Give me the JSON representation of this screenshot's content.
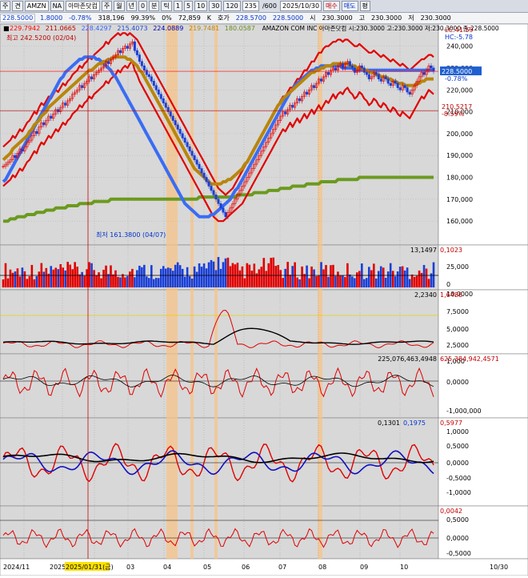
{
  "toolbar": {
    "items": [
      "주",
      "견",
      "AMZN",
      "NA",
      "아마존닷컴",
      "주",
      "월",
      "년",
      "0",
      "분",
      "틱",
      "1",
      "5",
      "10",
      "30",
      "120"
    ],
    "count": "235",
    "total": "/600",
    "date": "2025/10/30",
    "buy": "매수",
    "sell": "매도",
    "pyeong": "평"
  },
  "quote": {
    "price": "228.5000",
    "change": "1.8000",
    "change_pct": "-0.78%",
    "volume": "318,196",
    "ratio": "99.39%",
    "zero": "0%",
    "volume2": "72,859",
    "k_label": "K",
    "hoga_label": "호가",
    "hoga1": "228.5700",
    "hoga2": "228.5000",
    "si_label": "시",
    "open": "230.3000",
    "go_label": "고",
    "high": "230.3000",
    "jeo_label": "저",
    "low": "230.3000"
  },
  "chart_data": {
    "type": "line",
    "title": "AMAZON COM INC  아마존닷컴",
    "price_panel": {
      "ylim": [
        152,
        245
      ],
      "ticks": [
        "240,000",
        "230,000",
        "220,000",
        "210,000",
        "200,000",
        "190,000",
        "180,000",
        "170,000",
        "160,000"
      ],
      "legend": [
        "229.7942",
        "211.0665",
        "228.4297",
        "215.4073",
        "224.0889",
        "219.7481",
        "180.0587"
      ],
      "legend_colors": [
        "#ff0000",
        "#c00000",
        "#3366ff",
        "#1d4ed8",
        "#0000aa",
        "#b8860b",
        "#6b8e23"
      ],
      "ohlc_label": "AMAZON COM INC  아마존닷컴  시:230.3000 고:230.3000 저:230.3000 종:228.5000",
      "current_label": "228.5000",
      "ma_hi_label": "LC:41.59",
      "ma_lo_label": "HC:-5.78",
      "pct_label": "-0.78%",
      "low_label": "210.5217",
      "low_pct_label": "-8.59%",
      "max_label": "최고 242.5200 (02/04)",
      "min_label": "최저 161.3800 (04/07)",
      "close": [
        185,
        186,
        187,
        188,
        190,
        189,
        191,
        193,
        192,
        194,
        196,
        197,
        199,
        201,
        200,
        203,
        205,
        204,
        206,
        208,
        207,
        209,
        211,
        210,
        212,
        214,
        213,
        215,
        216,
        218,
        219,
        220,
        222,
        221,
        223,
        224,
        226,
        225,
        227,
        228,
        229,
        230,
        231,
        233,
        232,
        234,
        235,
        236,
        238,
        237,
        239,
        240,
        239,
        241,
        242,
        238,
        236,
        233,
        231,
        229,
        227,
        226,
        224,
        222,
        220,
        218,
        216,
        214,
        212,
        210,
        208,
        206,
        204,
        202,
        200,
        198,
        196,
        194,
        192,
        190,
        188,
        186,
        184,
        182,
        180,
        178,
        176,
        174,
        172,
        170,
        168,
        166,
        164,
        162,
        164,
        166,
        168,
        170,
        172,
        174,
        176,
        178,
        180,
        182,
        184,
        186,
        188,
        190,
        192,
        194,
        196,
        198,
        200,
        202,
        204,
        206,
        208,
        210,
        209,
        211,
        213,
        212,
        214,
        216,
        215,
        217,
        219,
        218,
        220,
        222,
        221,
        223,
        225,
        224,
        226,
        228,
        227,
        229,
        230,
        229,
        231,
        232,
        230,
        232,
        233,
        231,
        230,
        228,
        229,
        231,
        230,
        228,
        227,
        225,
        226,
        228,
        227,
        225,
        224,
        226,
        225,
        223,
        222,
        224,
        223,
        221,
        220,
        222,
        221,
        219,
        218,
        220,
        222,
        224,
        226,
        228,
        227,
        229,
        231,
        230,
        228.5
      ],
      "bb_upper": [
        194,
        195,
        196,
        197,
        199,
        198,
        200,
        202,
        201,
        203,
        205,
        206,
        208,
        210,
        209,
        212,
        214,
        213,
        215,
        217,
        216,
        218,
        220,
        219,
        221,
        223,
        222,
        224,
        225,
        227,
        228,
        229,
        231,
        230,
        232,
        233,
        235,
        234,
        236,
        237,
        238,
        239,
        240,
        242,
        241,
        243,
        244,
        245,
        246,
        245,
        246,
        246,
        245,
        246,
        245,
        244,
        243,
        241,
        239,
        237,
        235,
        233,
        231,
        229,
        227,
        225,
        223,
        221,
        219,
        217,
        215,
        213,
        211,
        209,
        207,
        205,
        203,
        201,
        199,
        197,
        195,
        193,
        191,
        189,
        187,
        185,
        183,
        181,
        179,
        177,
        175,
        174,
        173,
        172,
        173,
        174,
        175,
        177,
        179,
        181,
        183,
        185,
        187,
        189,
        191,
        193,
        195,
        197,
        199,
        201,
        203,
        205,
        207,
        209,
        211,
        213,
        215,
        217,
        217,
        219,
        221,
        221,
        223,
        225,
        225,
        227,
        229,
        229,
        231,
        233,
        233,
        235,
        237,
        237,
        239,
        240,
        240,
        241,
        242,
        242,
        243,
        243,
        242,
        243,
        243,
        242,
        241,
        240,
        240,
        241,
        240,
        239,
        238,
        237,
        237,
        238,
        237,
        236,
        235,
        236,
        235,
        234,
        233,
        234,
        233,
        232,
        231,
        232,
        231,
        230,
        229,
        230,
        231,
        232,
        233,
        234,
        234,
        235,
        236,
        236,
        235
      ],
      "bb_lower": [
        176,
        177,
        178,
        179,
        181,
        180,
        182,
        184,
        183,
        185,
        187,
        188,
        190,
        192,
        191,
        194,
        196,
        195,
        197,
        199,
        198,
        200,
        202,
        201,
        203,
        205,
        204,
        206,
        207,
        209,
        210,
        211,
        213,
        212,
        214,
        215,
        217,
        216,
        218,
        219,
        220,
        221,
        222,
        224,
        223,
        225,
        226,
        227,
        229,
        228,
        230,
        231,
        230,
        232,
        233,
        229,
        227,
        224,
        222,
        220,
        218,
        216,
        214,
        212,
        210,
        208,
        206,
        204,
        202,
        200,
        198,
        196,
        194,
        192,
        190,
        188,
        186,
        184,
        182,
        180,
        178,
        176,
        174,
        172,
        170,
        168,
        166,
        164,
        162,
        161,
        160,
        160,
        160,
        161,
        162,
        163,
        164,
        165,
        166,
        167,
        168,
        170,
        172,
        174,
        176,
        178,
        180,
        182,
        184,
        186,
        188,
        190,
        192,
        194,
        196,
        198,
        200,
        202,
        201,
        203,
        205,
        203,
        205,
        207,
        205,
        207,
        209,
        207,
        209,
        211,
        209,
        211,
        213,
        211,
        213,
        215,
        214,
        216,
        218,
        216,
        218,
        219,
        218,
        220,
        221,
        219,
        218,
        216,
        217,
        219,
        218,
        216,
        215,
        213,
        214,
        216,
        215,
        213,
        212,
        214,
        213,
        211,
        210,
        212,
        211,
        209,
        208,
        210,
        209,
        208,
        207,
        209,
        211,
        213,
        215,
        217,
        216,
        218,
        220,
        219,
        218
      ],
      "ma_mid": [
        188,
        189,
        190,
        191,
        193,
        194,
        195,
        196,
        197,
        198,
        199,
        201,
        202,
        204,
        205,
        206,
        208,
        209,
        210,
        212,
        213,
        214,
        215,
        216,
        217,
        218,
        219,
        220,
        221,
        222,
        223,
        224,
        225,
        226,
        227,
        228,
        229,
        229,
        230,
        231,
        232,
        232,
        233,
        233,
        234,
        234,
        235,
        235,
        235,
        235,
        235,
        235,
        234,
        234,
        233,
        232,
        231,
        229,
        228,
        226,
        224,
        222,
        220,
        218,
        216,
        214,
        212,
        210,
        208,
        206,
        204,
        202,
        200,
        198,
        196,
        194,
        192,
        190,
        188,
        186,
        184,
        183,
        182,
        181,
        180,
        179,
        178,
        177,
        177,
        177,
        177,
        177,
        178,
        178,
        179,
        179,
        180,
        181,
        182,
        183,
        184,
        186,
        187,
        189,
        191,
        193,
        195,
        197,
        199,
        201,
        203,
        205,
        207,
        209,
        211,
        213,
        214,
        216,
        217,
        218,
        219,
        220,
        221,
        222,
        223,
        224,
        225,
        226,
        227,
        228,
        228,
        229,
        229,
        230,
        230,
        231,
        231,
        231,
        232,
        232,
        232,
        232,
        232,
        232,
        232,
        231,
        231,
        231,
        230,
        230,
        230,
        229,
        229,
        228,
        228,
        228,
        227,
        227,
        226,
        226,
        226,
        225,
        225,
        224,
        224,
        223,
        223,
        223,
        222,
        222,
        222,
        222,
        222,
        223,
        223,
        224,
        224,
        225,
        225,
        225,
        225
      ],
      "ma_long": [
        178,
        179,
        181,
        183,
        185,
        187,
        189,
        191,
        193,
        195,
        197,
        199,
        201,
        203,
        205,
        207,
        209,
        211,
        213,
        215,
        217,
        219,
        221,
        223,
        225,
        226,
        228,
        229,
        230,
        231,
        232,
        233,
        234,
        234,
        235,
        235,
        235,
        235,
        235,
        234,
        234,
        233,
        232,
        231,
        230,
        229,
        227,
        226,
        224,
        222,
        220,
        218,
        216,
        214,
        212,
        210,
        208,
        206,
        204,
        202,
        200,
        198,
        196,
        194,
        192,
        190,
        188,
        186,
        184,
        182,
        180,
        178,
        176,
        174,
        172,
        170,
        168,
        167,
        166,
        165,
        164,
        163,
        162,
        162,
        162,
        162,
        162,
        163,
        163,
        164,
        165,
        166,
        167,
        168,
        169,
        170,
        172,
        174,
        175,
        177,
        179,
        181,
        183,
        185,
        187,
        189,
        191,
        193,
        195,
        197,
        199,
        201,
        203,
        205,
        207,
        209,
        211,
        213,
        215,
        217,
        219,
        220,
        222,
        223,
        224,
        225,
        226,
        227,
        228,
        229,
        229,
        230,
        230,
        231,
        231,
        231,
        231,
        231,
        231,
        231,
        231,
        231,
        230,
        230,
        230,
        230,
        230,
        229,
        229,
        229,
        229,
        229,
        229,
        229,
        229,
        229,
        229,
        229,
        229,
        229,
        229,
        229,
        229,
        229,
        229,
        229,
        229,
        229,
        229,
        229,
        229,
        229,
        229,
        229,
        229,
        229,
        229,
        229,
        229,
        229,
        229
      ],
      "ma_200": [
        160,
        160,
        160,
        161,
        161,
        161,
        162,
        162,
        162,
        162,
        163,
        163,
        163,
        163,
        164,
        164,
        164,
        164,
        165,
        165,
        165,
        165,
        166,
        166,
        166,
        166,
        166,
        167,
        167,
        167,
        167,
        167,
        168,
        168,
        168,
        168,
        168,
        168,
        169,
        169,
        169,
        169,
        169,
        169,
        169,
        170,
        170,
        170,
        170,
        170,
        170,
        170,
        170,
        170,
        170,
        170,
        170,
        170,
        170,
        170,
        170,
        170,
        170,
        170,
        170,
        170,
        170,
        170,
        170,
        170,
        170,
        170,
        170,
        170,
        170,
        170,
        170,
        170,
        170,
        170,
        170,
        170,
        171,
        171,
        171,
        171,
        171,
        171,
        171,
        171,
        171,
        171,
        171,
        171,
        171,
        171,
        171,
        171,
        172,
        172,
        172,
        172,
        172,
        172,
        172,
        173,
        173,
        173,
        173,
        173,
        173,
        174,
        174,
        174,
        174,
        174,
        175,
        175,
        175,
        175,
        175,
        176,
        176,
        176,
        176,
        176,
        176,
        177,
        177,
        177,
        177,
        177,
        177,
        178,
        178,
        178,
        178,
        178,
        178,
        178,
        179,
        179,
        179,
        179,
        179,
        179,
        179,
        179,
        179,
        180,
        180,
        180,
        180,
        180,
        180,
        180,
        180,
        180,
        180,
        180,
        180,
        180,
        180,
        180,
        180,
        180,
        180,
        180,
        180,
        180,
        180,
        180,
        180,
        180,
        180,
        180,
        180,
        180,
        180,
        180,
        180
      ]
    },
    "volume_panel": {
      "ticks": [
        "25,000",
        "0"
      ],
      "legend": [
        "13,1497",
        "0,1023"
      ]
    },
    "osc1_panel": {
      "ticks": [
        "10,0000",
        "7,5000",
        "5,0000",
        "2,5000"
      ],
      "legend": [
        "2,2340",
        "1,6486"
      ]
    },
    "osc2_panel": {
      "ticks": [
        "1,000",
        "0,0000",
        "-1,000,000"
      ],
      "legend": [
        "225,076,463,4948",
        "625,384,942,4571"
      ]
    },
    "osc3_panel": {
      "ticks": [
        "1,0000",
        "0,5000",
        "0,0000",
        "-0,5000",
        "-1,0000"
      ],
      "legend": [
        "0,1301",
        "0,1975",
        "0,5977"
      ]
    },
    "osc4_panel": {
      "ticks": [
        "0,5000",
        "0,0000",
        "-0,5000"
      ],
      "legend": [
        "0,0042"
      ]
    },
    "x_axis": {
      "labels": [
        "2024/11",
        "2025",
        "2025/01/31(금)",
        "03",
        "04",
        "05",
        "06",
        "07",
        "08",
        "09",
        "10",
        "10/30"
      ],
      "highlight_label": "2025/01/31(금)"
    },
    "legend_placement": "top-left",
    "grid": true
  },
  "colors": {
    "bb": "#e10000",
    "ma_mid": "#b8860b",
    "ma_long": "#3a6cf4",
    "ma_200": "#6b9a1e",
    "up": "#e00000",
    "down": "#1a3fd6",
    "highlight": "#f7c48a",
    "panel_bg": "#d7d7d7"
  }
}
